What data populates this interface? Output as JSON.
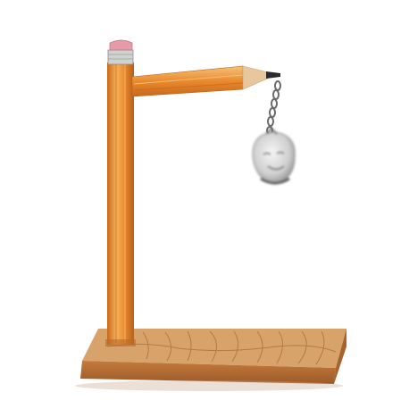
{
  "scene": {
    "description_visible_text": [],
    "colors": {
      "background": "#ffffff",
      "pencil_body": "#e98a2e",
      "pencil_body_dark": "#c8671a",
      "pencil_body_light": "#f4b25a",
      "eraser": "#e79aa8",
      "ferrule": "#cfd2cf",
      "wood_cone": "#e9c79d",
      "graphite": "#2c2a2a",
      "base_top": "#d8a36a",
      "base_side": "#b56d33",
      "chain": "#6b6b6b",
      "ornament": "#d9d9d9"
    },
    "icons": {
      "vertical_pencil": "pencil-upright-icon",
      "horizontal_pencil": "pencil-arm-icon",
      "hanging_ornament": "hanging-pendant-icon",
      "wood_base": "wood-base-icon"
    }
  }
}
